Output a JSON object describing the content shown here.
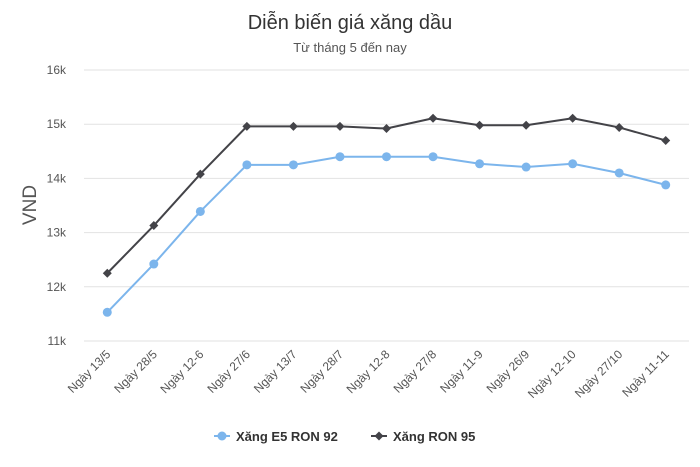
{
  "chart_data": {
    "type": "line",
    "title": "Diễn biến giá xăng dầu",
    "subtitle": "Từ tháng 5 đến nay",
    "xlabel": "",
    "ylabel": "VND",
    "categories": [
      "Ngày 13/5",
      "Ngày 28/5",
      "Ngày 12-6",
      "Ngày 27/6",
      "Ngày 13/7",
      "Ngày 28/7",
      "Ngày 12-8",
      "Ngày 27/8",
      "Ngày 11-9",
      "Ngày 26/9",
      "Ngày 12-10",
      "Ngày 27/10",
      "Ngày 11-11"
    ],
    "ylim": [
      11000,
      16000
    ],
    "yticks": [
      11000,
      12000,
      13000,
      14000,
      15000,
      16000
    ],
    "ytick_labels": [
      "11k",
      "12k",
      "13k",
      "14k",
      "15k",
      "16k"
    ],
    "grid": true,
    "legend_position": "bottom",
    "series": [
      {
        "name": "Xăng E5 RON 92",
        "color": "#7cb5ec",
        "marker": "circle",
        "values": [
          11530,
          12420,
          13390,
          14250,
          14250,
          14400,
          14400,
          14400,
          14270,
          14210,
          14270,
          14100,
          13880
        ]
      },
      {
        "name": "Xăng RON 95",
        "color": "#434348",
        "marker": "diamond",
        "values": [
          12250,
          13130,
          14080,
          14960,
          14960,
          14960,
          14920,
          15110,
          14980,
          14980,
          15110,
          14940,
          14700
        ]
      }
    ]
  }
}
